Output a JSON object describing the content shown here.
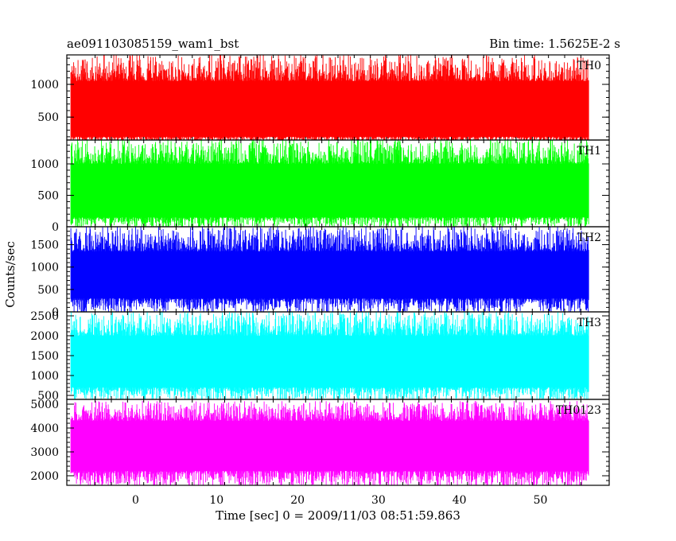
{
  "header": {
    "title": "ae091103085159_wam1_bst",
    "bin_time": "Bin time: 1.5625E-2 s"
  },
  "chart_data": {
    "type": "line",
    "xlabel": "Time [sec] 0 = 2009/11/03 08:51:59.863",
    "ylabel": "Counts/sec",
    "xlim": [
      -8.5,
      58.5
    ],
    "data_range": [
      -8,
      56
    ],
    "x_ticks": [
      0,
      10,
      20,
      30,
      40,
      50
    ],
    "colors": {
      "TH0": "#ff0000",
      "TH1": "#00ff00",
      "TH2": "#0000ff",
      "TH3": "#00ffff",
      "TH0123": "#ff00ff"
    },
    "panels": [
      {
        "name": "TH0",
        "ylim": [
          150,
          1450
        ],
        "y_ticks": [
          500,
          1000
        ],
        "band": [
          200,
          1050
        ],
        "peak": 1450
      },
      {
        "name": "TH1",
        "ylim": [
          0,
          1380
        ],
        "y_ticks": [
          0,
          500,
          1000
        ],
        "band": [
          150,
          1000
        ],
        "peak": 1380
      },
      {
        "name": "TH2",
        "ylim": [
          0,
          1900
        ],
        "y_ticks": [
          0,
          500,
          1000,
          1500
        ],
        "band": [
          300,
          1350
        ],
        "peak": 1900
      },
      {
        "name": "TH3",
        "ylim": [
          400,
          2600
        ],
        "y_ticks": [
          500,
          1000,
          1500,
          2000,
          2500
        ],
        "band": [
          700,
          2000
        ],
        "peak": 2600
      },
      {
        "name": "TH0123",
        "ylim": [
          1600,
          5200
        ],
        "y_ticks": [
          2000,
          3000,
          4000,
          5000
        ],
        "band": [
          2200,
          4300
        ],
        "peak": 5100
      }
    ]
  }
}
